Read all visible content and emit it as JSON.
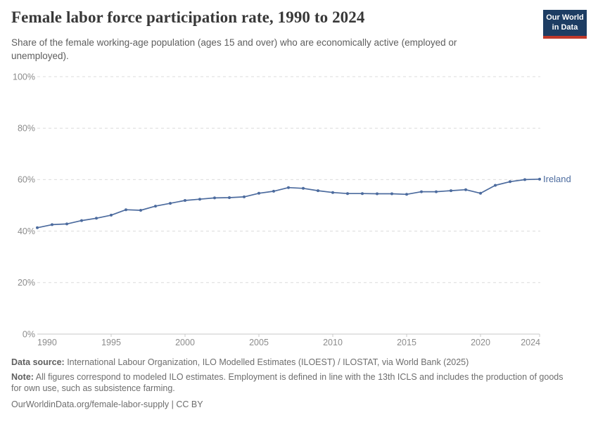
{
  "header": {
    "title": "Female labor force participation rate, 1990 to 2024",
    "subtitle": "Share of the female working-age population (ages 15 and over) who are economically active (employed or unemployed).",
    "logo": {
      "line1": "Our World",
      "line2": "in Data"
    }
  },
  "chart_data": {
    "type": "line",
    "title": "Female labor force participation rate, 1990 to 2024",
    "xlabel": "",
    "ylabel": "",
    "xlim": [
      1990,
      2024
    ],
    "ylim": [
      0,
      100
    ],
    "grid": "horizontal-dashed",
    "x_tick_years": [
      1990,
      1995,
      2000,
      2005,
      2010,
      2015,
      2020,
      2024
    ],
    "y_tick_values": [
      0,
      20,
      40,
      60,
      80,
      100
    ],
    "y_tick_labels": [
      "0%",
      "20%",
      "40%",
      "60%",
      "80%",
      "100%"
    ],
    "series": [
      {
        "name": "Ireland",
        "color": "#4c6b9e",
        "years": [
          1990,
          1991,
          1992,
          1993,
          1994,
          1995,
          1996,
          1997,
          1998,
          1999,
          2000,
          2001,
          2002,
          2003,
          2004,
          2005,
          2006,
          2007,
          2008,
          2009,
          2010,
          2011,
          2012,
          2013,
          2014,
          2015,
          2016,
          2017,
          2018,
          2019,
          2020,
          2021,
          2022,
          2023,
          2024
        ],
        "values": [
          41.3,
          42.5,
          42.8,
          44.1,
          45.0,
          46.2,
          48.3,
          48.1,
          49.7,
          50.8,
          51.9,
          52.4,
          52.9,
          53.0,
          53.3,
          54.7,
          55.5,
          56.9,
          56.6,
          55.7,
          55.0,
          54.6,
          54.6,
          54.5,
          54.5,
          54.3,
          55.3,
          55.3,
          55.7,
          56.1,
          54.7,
          57.8,
          59.2,
          60.0,
          60.2
        ]
      }
    ],
    "end_label": "Ireland",
    "legend_position": "end-of-line"
  },
  "footer": {
    "data_source_label": "Data source:",
    "data_source": " International Labour Organization, ILO Modelled Estimates (ILOEST) / ILOSTAT, via World Bank (2025)",
    "note_label": "Note:",
    "note": " All figures correspond to modeled ILO estimates. Employment is defined in line with the 13th ICLS and includes the production of goods for own use, such as subsistence farming.",
    "url": "OurWorldinData.org/female-labor-supply | CC BY"
  },
  "colors": {
    "line": "#4c6b9e",
    "grid": "#dcdcdc",
    "axis": "#c8c8c8",
    "tick_label": "#8c8c8c",
    "logo_bg": "#1d3d63",
    "logo_stripe": "#c0392b"
  }
}
